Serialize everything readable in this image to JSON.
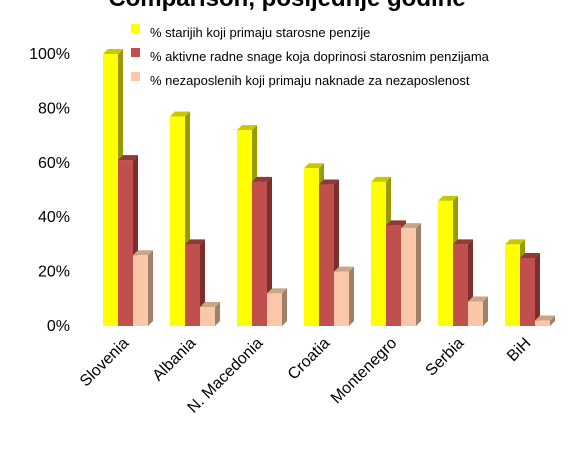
{
  "chart_data": {
    "type": "bar",
    "title": "Comparison, posljednje godine",
    "categories": [
      "Slovenia",
      "Albania",
      "N. Macedonia",
      "Croatia",
      "Montenegro",
      "Serbia",
      "BiH"
    ],
    "series": [
      {
        "name": "% starijih koji primaju starosne penzije",
        "values": [
          100,
          77,
          72,
          58,
          53,
          46,
          30
        ]
      },
      {
        "name": "% aktivne radne snage koja doprinosi starosnim penzijama",
        "values": [
          61,
          30,
          53,
          52,
          37,
          30,
          25
        ]
      },
      {
        "name": "% nezaposlenih koji primaju naknade za nezaposlenost",
        "values": [
          26,
          7,
          12,
          20,
          36,
          9,
          2
        ]
      }
    ],
    "ylim": [
      0,
      100
    ],
    "yticks": [
      "0%",
      "20%",
      "40%",
      "60%",
      "80%",
      "100%"
    ],
    "grid": false,
    "legend_position": "top-right",
    "colors": [
      "#ffff00",
      "#c0504d",
      "#fac8a8"
    ],
    "side_colors": [
      "#999900",
      "#7b2f2c",
      "#a08068"
    ],
    "top_colors": [
      "#c8c800",
      "#8f3a36",
      "#c9a58a"
    ]
  }
}
